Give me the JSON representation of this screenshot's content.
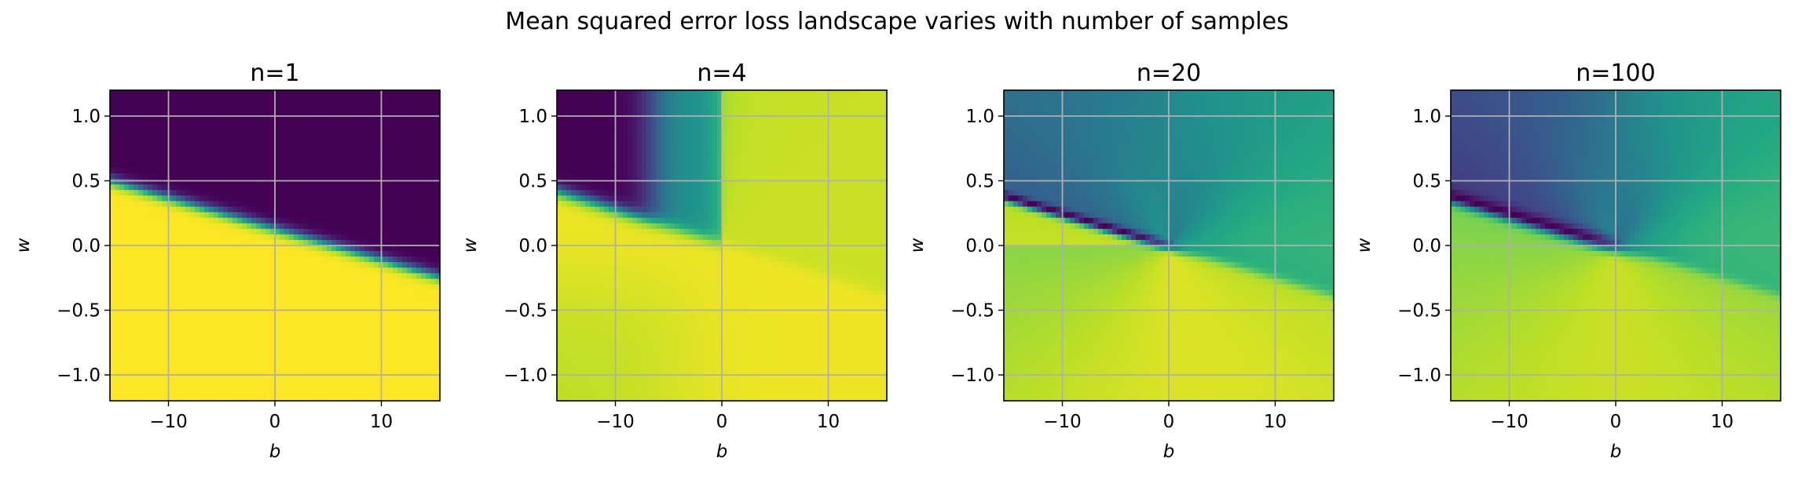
{
  "figure": {
    "title": "Mean squared error loss landscape varies with number of samples"
  },
  "chart_data": [
    {
      "type": "heatmap",
      "title": "n=1",
      "xlabel": "b",
      "ylabel": "w",
      "xlim": [
        -15.5,
        15.5
      ],
      "ylim": [
        -1.2,
        1.2
      ],
      "xticks": [
        -10,
        0,
        10
      ],
      "yticks": [
        -1.0,
        -0.5,
        0.0,
        0.5,
        1.0
      ],
      "grid": true,
      "colormap": "viridis",
      "landscape": {
        "boundary_slope_w_per_b": -0.024,
        "boundary_intercept_w": 0.13,
        "upper_region_level": 0.0,
        "lower_region_level": 1.0
      }
    },
    {
      "type": "heatmap",
      "title": "n=4",
      "xlabel": "b",
      "ylabel": "w",
      "xlim": [
        -15.5,
        15.5
      ],
      "ylim": [
        -1.2,
        1.2
      ],
      "xticks": [
        -10,
        0,
        10
      ],
      "yticks": [
        -1.0,
        -0.5,
        0.0,
        0.5,
        1.0
      ],
      "grid": true,
      "colormap": "viridis",
      "landscape": {
        "top_left_level": 0.0,
        "top_middle_level": 0.5,
        "top_right_level": 0.92,
        "bottom_level": 0.98
      }
    },
    {
      "type": "heatmap",
      "title": "n=20",
      "xlabel": "b",
      "ylabel": "w",
      "xlim": [
        -15.5,
        15.5
      ],
      "ylim": [
        -1.2,
        1.2
      ],
      "xticks": [
        -10,
        0,
        10
      ],
      "yticks": [
        -1.0,
        -0.5,
        0.0,
        0.5,
        1.0
      ],
      "grid": true,
      "colormap": "viridis",
      "landscape": {
        "minimum_valley_level": 0.0,
        "top_left_level": 0.33,
        "top_right_level": 0.6,
        "bottom_level": 0.95
      }
    },
    {
      "type": "heatmap",
      "title": "n=100",
      "xlabel": "b",
      "ylabel": "w",
      "xlim": [
        -15.5,
        15.5
      ],
      "ylim": [
        -1.2,
        1.2
      ],
      "xticks": [
        -10,
        0,
        10
      ],
      "yticks": [
        -1.0,
        -0.5,
        0.0,
        0.5,
        1.0
      ],
      "grid": true,
      "colormap": "viridis",
      "landscape": {
        "minimum_valley_level": 0.0,
        "top_left_level": 0.2,
        "top_right_level": 0.62,
        "bottom_level": 0.92
      }
    }
  ]
}
